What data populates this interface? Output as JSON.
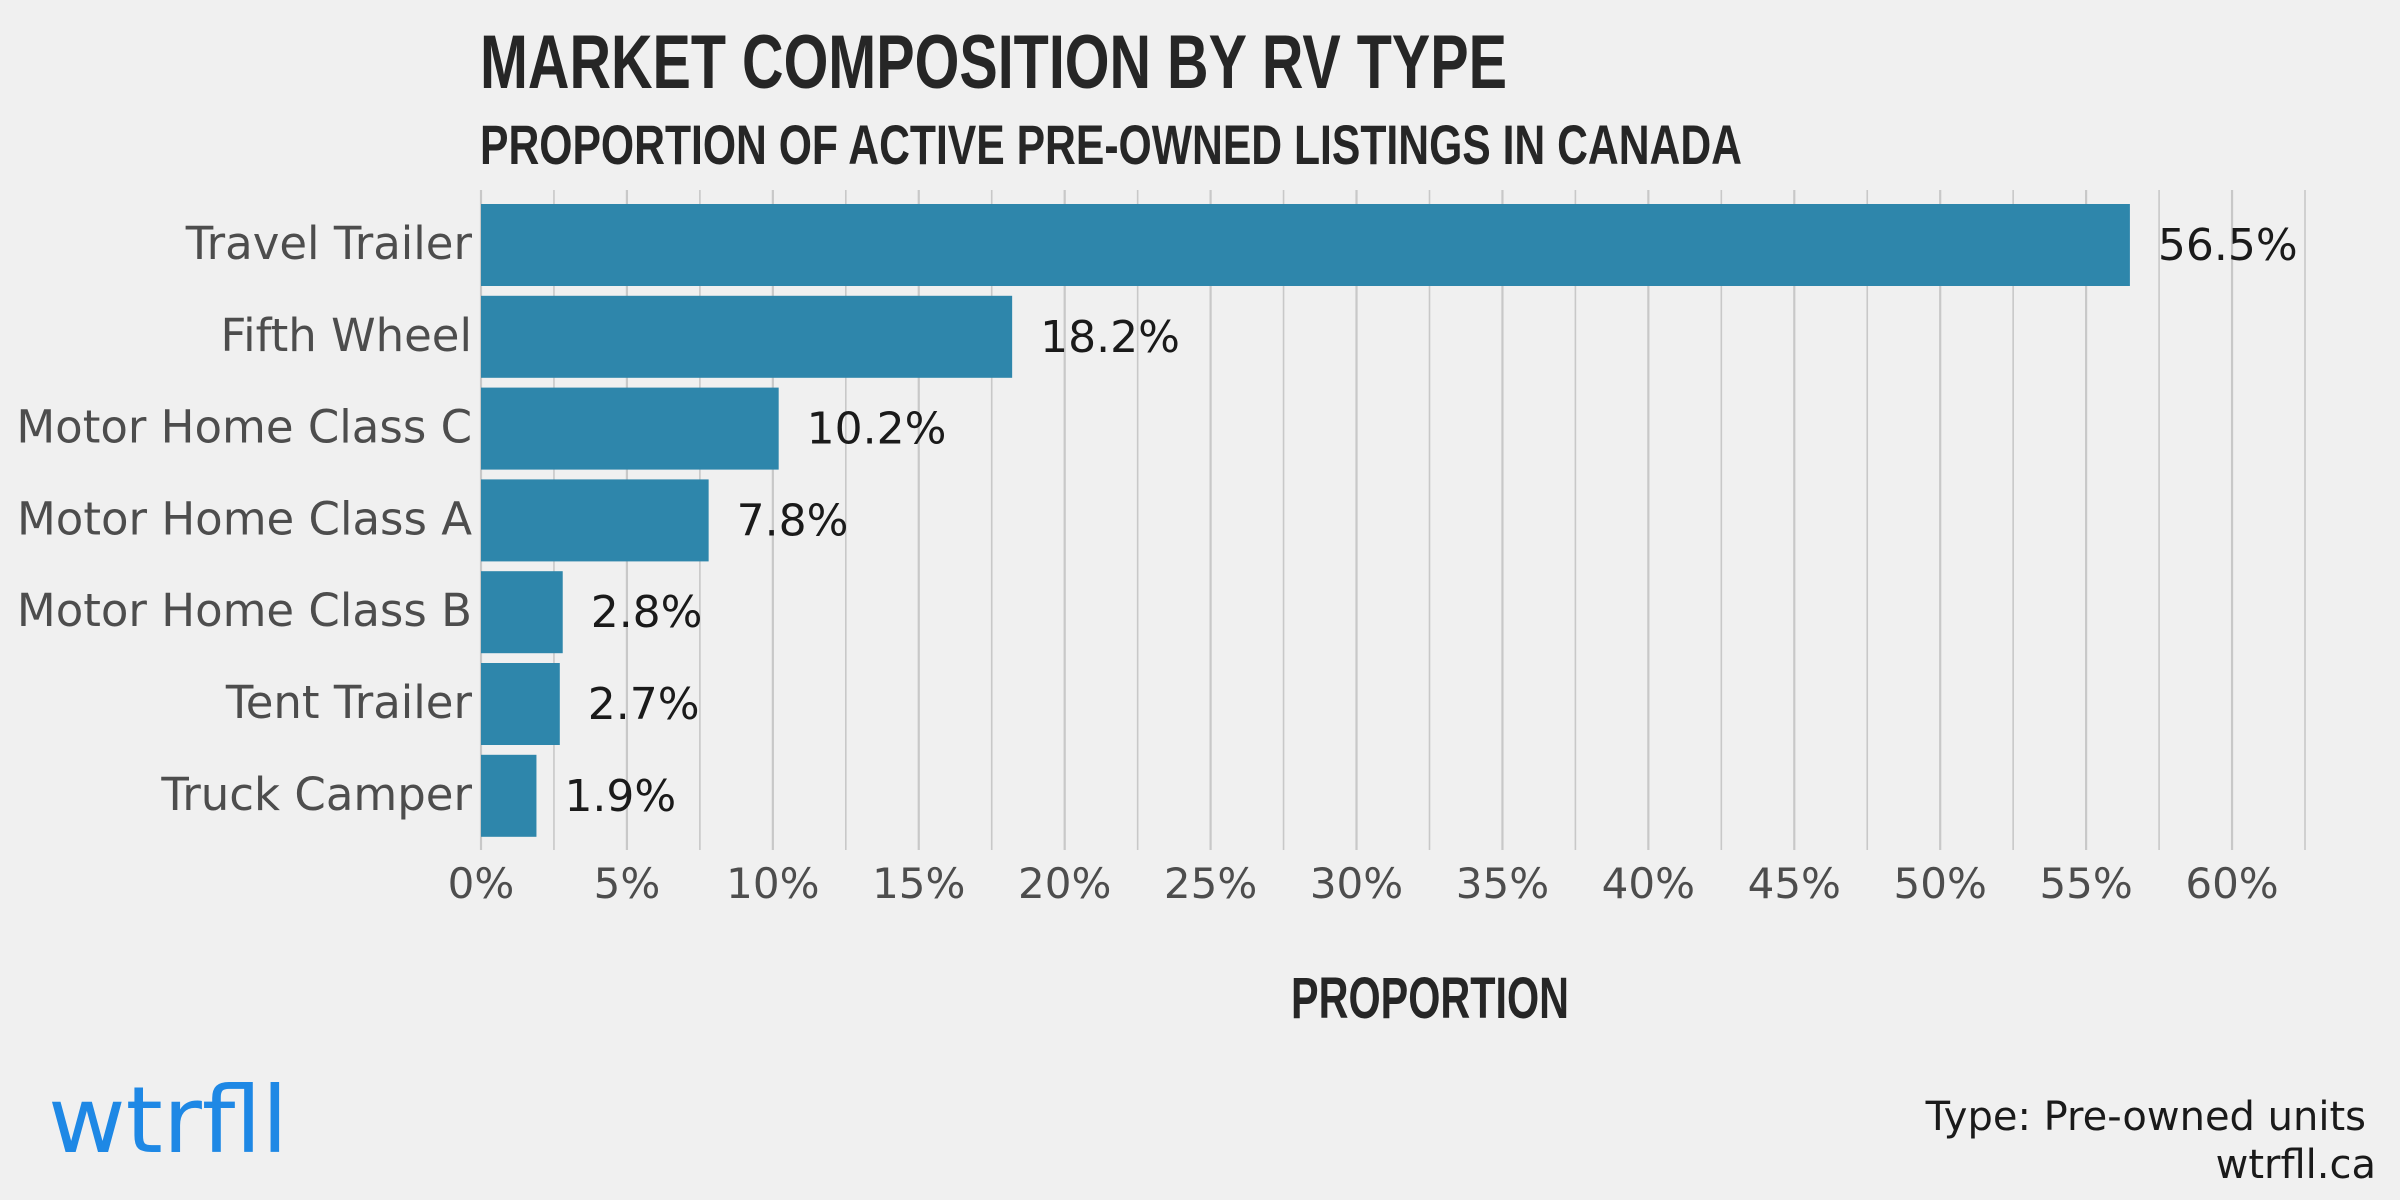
{
  "chart_data": {
    "type": "bar",
    "orientation": "horizontal",
    "title": "MARKET COMPOSITION BY RV TYPE",
    "subtitle": "PROPORTION OF ACTIVE PRE-OWNED LISTINGS IN CANADA",
    "xlabel": "PROPORTION",
    "ylabel": "",
    "categories": [
      "Travel Trailer",
      "Fifth Wheel",
      "Motor Home Class C",
      "Motor Home Class A",
      "Motor Home Class B",
      "Tent Trailer",
      "Truck Camper"
    ],
    "values": [
      56.5,
      18.2,
      10.2,
      7.8,
      2.8,
      2.7,
      1.9
    ],
    "data_labels": [
      "56.5%",
      "18.2%",
      "10.2%",
      "7.8%",
      "2.8%",
      "2.7%",
      "1.9%"
    ],
    "xlim": [
      0,
      62.5
    ],
    "x_ticks": [
      0,
      5,
      10,
      15,
      20,
      25,
      30,
      35,
      40,
      45,
      50,
      55,
      60
    ],
    "x_tick_labels": [
      "0%",
      "5%",
      "10%",
      "15%",
      "20%",
      "25%",
      "30%",
      "35%",
      "40%",
      "45%",
      "50%",
      "55%",
      "60%"
    ],
    "grid": true,
    "legend": "none",
    "bar_color": "#2e86ab",
    "grid_color": "#c8c8c8"
  },
  "branding": {
    "logo": "wtrfll",
    "logo_color": "#1e88e5"
  },
  "caption": {
    "line1": "Type: Pre-owned units",
    "line2": "wtrfll.ca"
  }
}
